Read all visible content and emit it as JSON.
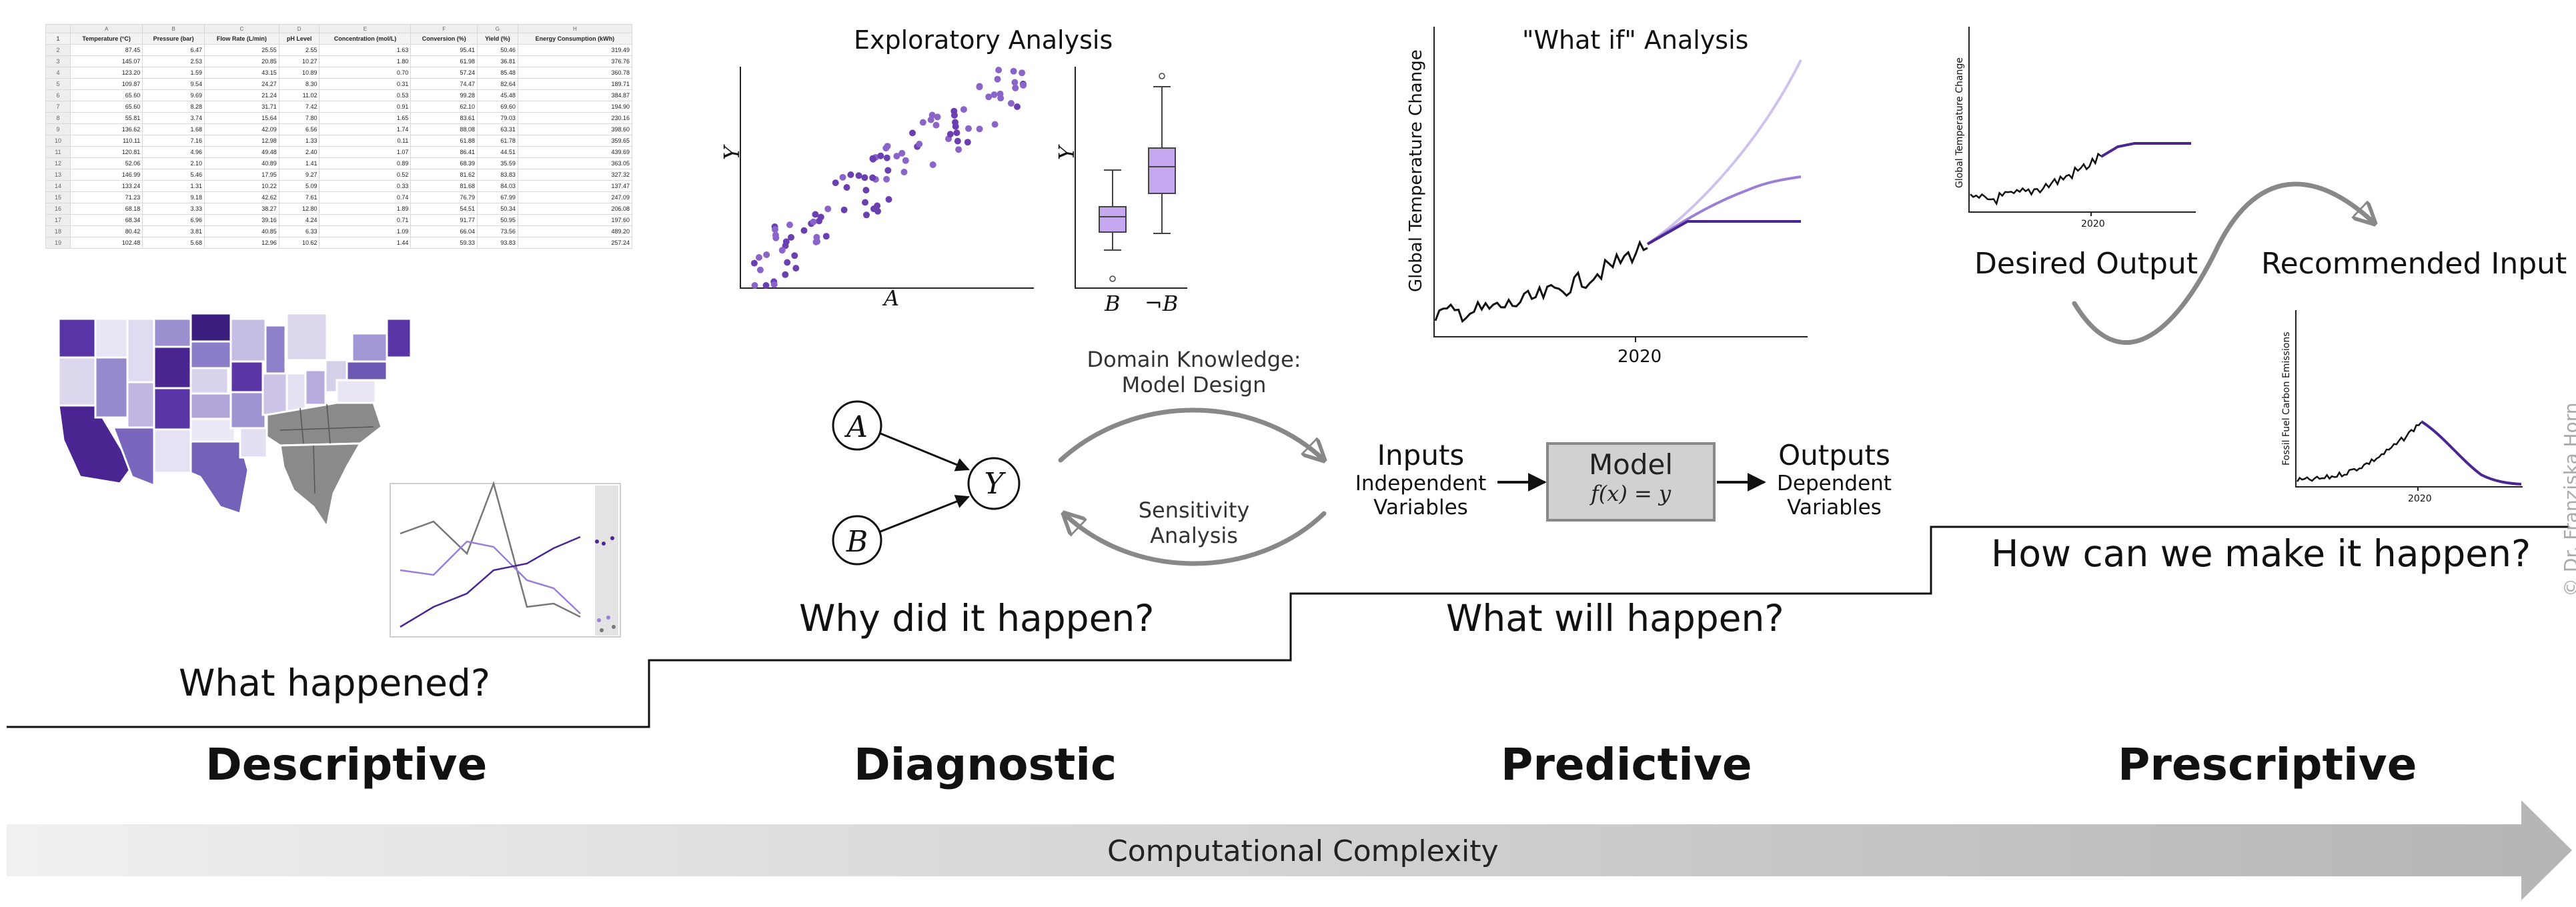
{
  "stages": [
    {
      "name": "Descriptive",
      "question": "What happened?"
    },
    {
      "name": "Diagnostic",
      "question": "Why did it happen?"
    },
    {
      "name": "Predictive",
      "question": "What will happen?"
    },
    {
      "name": "Prescriptive",
      "question": "How can we make it happen?"
    }
  ],
  "complexity_label": "Computational Complexity",
  "copyright": "© Dr. Franziska Horn",
  "spreadsheet": {
    "col_letters": [
      "",
      "A",
      "B",
      "C",
      "D",
      "E",
      "F",
      "G",
      "H"
    ],
    "headers": [
      "Temperature (°C)",
      "Pressure (bar)",
      "Flow Rate (L/min)",
      "pH Level",
      "Concentration (mol/L)",
      "Conversion (%)",
      "Yield (%)",
      "Energy Consumption (kWh)"
    ],
    "rows": [
      [
        "2",
        "87.45",
        "6.47",
        "25.55",
        "2.55",
        "1.63",
        "95.41",
        "50.46",
        "319.49"
      ],
      [
        "3",
        "145.07",
        "2.53",
        "20.85",
        "10.27",
        "1.80",
        "61.98",
        "36.81",
        "376.76"
      ],
      [
        "4",
        "123.20",
        "1.59",
        "43.15",
        "10.89",
        "0.70",
        "57.24",
        "85.48",
        "360.78"
      ],
      [
        "5",
        "109.87",
        "9.54",
        "24.27",
        "8.30",
        "0.31",
        "74.47",
        "82.64",
        "189.71"
      ],
      [
        "6",
        "65.60",
        "9.69",
        "21.24",
        "11.02",
        "0.53",
        "99.28",
        "45.48",
        "384.87"
      ],
      [
        "7",
        "65.60",
        "8.28",
        "31.71",
        "7.42",
        "0.91",
        "62.10",
        "69.60",
        "194.90"
      ],
      [
        "8",
        "55.81",
        "3.74",
        "15.64",
        "7.80",
        "1.65",
        "83.61",
        "79.03",
        "230.16"
      ],
      [
        "9",
        "136.62",
        "1.68",
        "42.09",
        "6.56",
        "1.74",
        "88.08",
        "63.31",
        "398.60"
      ],
      [
        "10",
        "110.11",
        "7.16",
        "12.98",
        "1.33",
        "0.11",
        "61.88",
        "61.78",
        "359.65"
      ],
      [
        "11",
        "120.81",
        "4.96",
        "49.48",
        "2.40",
        "1.07",
        "86.41",
        "44.51",
        "439.69"
      ],
      [
        "12",
        "52.06",
        "2.10",
        "40.89",
        "1.41",
        "0.89",
        "68.39",
        "35.59",
        "363.05"
      ],
      [
        "13",
        "146.99",
        "5.46",
        "17.95",
        "9.27",
        "0.52",
        "81.62",
        "83.83",
        "327.32"
      ],
      [
        "14",
        "133.24",
        "1.31",
        "10.22",
        "5.09",
        "0.33",
        "81.68",
        "84.03",
        "137.47"
      ],
      [
        "15",
        "71.23",
        "9.18",
        "42.62",
        "7.61",
        "0.74",
        "76.79",
        "67.99",
        "247.09"
      ],
      [
        "16",
        "68.18",
        "3.33",
        "38.27",
        "12.80",
        "1.89",
        "54.51",
        "50.34",
        "206.08"
      ],
      [
        "17",
        "68.34",
        "6.96",
        "39.16",
        "4.24",
        "0.71",
        "91.77",
        "50.95",
        "197.60"
      ],
      [
        "18",
        "80.42",
        "3.81",
        "40.85",
        "6.33",
        "1.09",
        "66.04",
        "73.56",
        "489.20"
      ],
      [
        "19",
        "102.48",
        "5.68",
        "12.96",
        "10.62",
        "1.44",
        "59.33",
        "93.83",
        "257.24"
      ]
    ]
  },
  "exploratory": {
    "title": "Exploratory Analysis",
    "scatter_xlabel": "A",
    "scatter_ylabel": "Y",
    "box_ylabel": "Y",
    "box_labels": [
      "B",
      "¬B"
    ]
  },
  "causal_graph": {
    "nodes": [
      "A",
      "B",
      "Y"
    ]
  },
  "domain_knowledge": [
    "Domain Knowledge:",
    "Model Design"
  ],
  "sensitivity": [
    "Sensitivity",
    "Analysis"
  ],
  "inputs": {
    "title": "Inputs",
    "sub": [
      "Independent",
      "Variables"
    ]
  },
  "model": {
    "title": "Model",
    "formula": "f(x) = y"
  },
  "outputs": {
    "title": "Outputs",
    "sub": [
      "Dependent",
      "Variables"
    ]
  },
  "whatif": {
    "title": "\"What if\" Analysis",
    "ylabel": "Global Temperature Change",
    "xtick": "2020"
  },
  "desired": {
    "label": "Desired Output",
    "ylabel": "Global Temperature Change",
    "xtick": "2020"
  },
  "recommended": {
    "label": "Recommended Input",
    "ylabel": "Fossil Fuel Carbon Emissions",
    "xtick": "2020"
  },
  "colors": {
    "dark_purple": "#4b2591",
    "mid_purple": "#9b7fd6",
    "light_purple": "#cfc2ec",
    "box_fill": "#c6a8f0",
    "gray": "#888888",
    "arrow_gradient_start": "#f0f0f0",
    "arrow_gradient_end": "#b5b5b5"
  }
}
